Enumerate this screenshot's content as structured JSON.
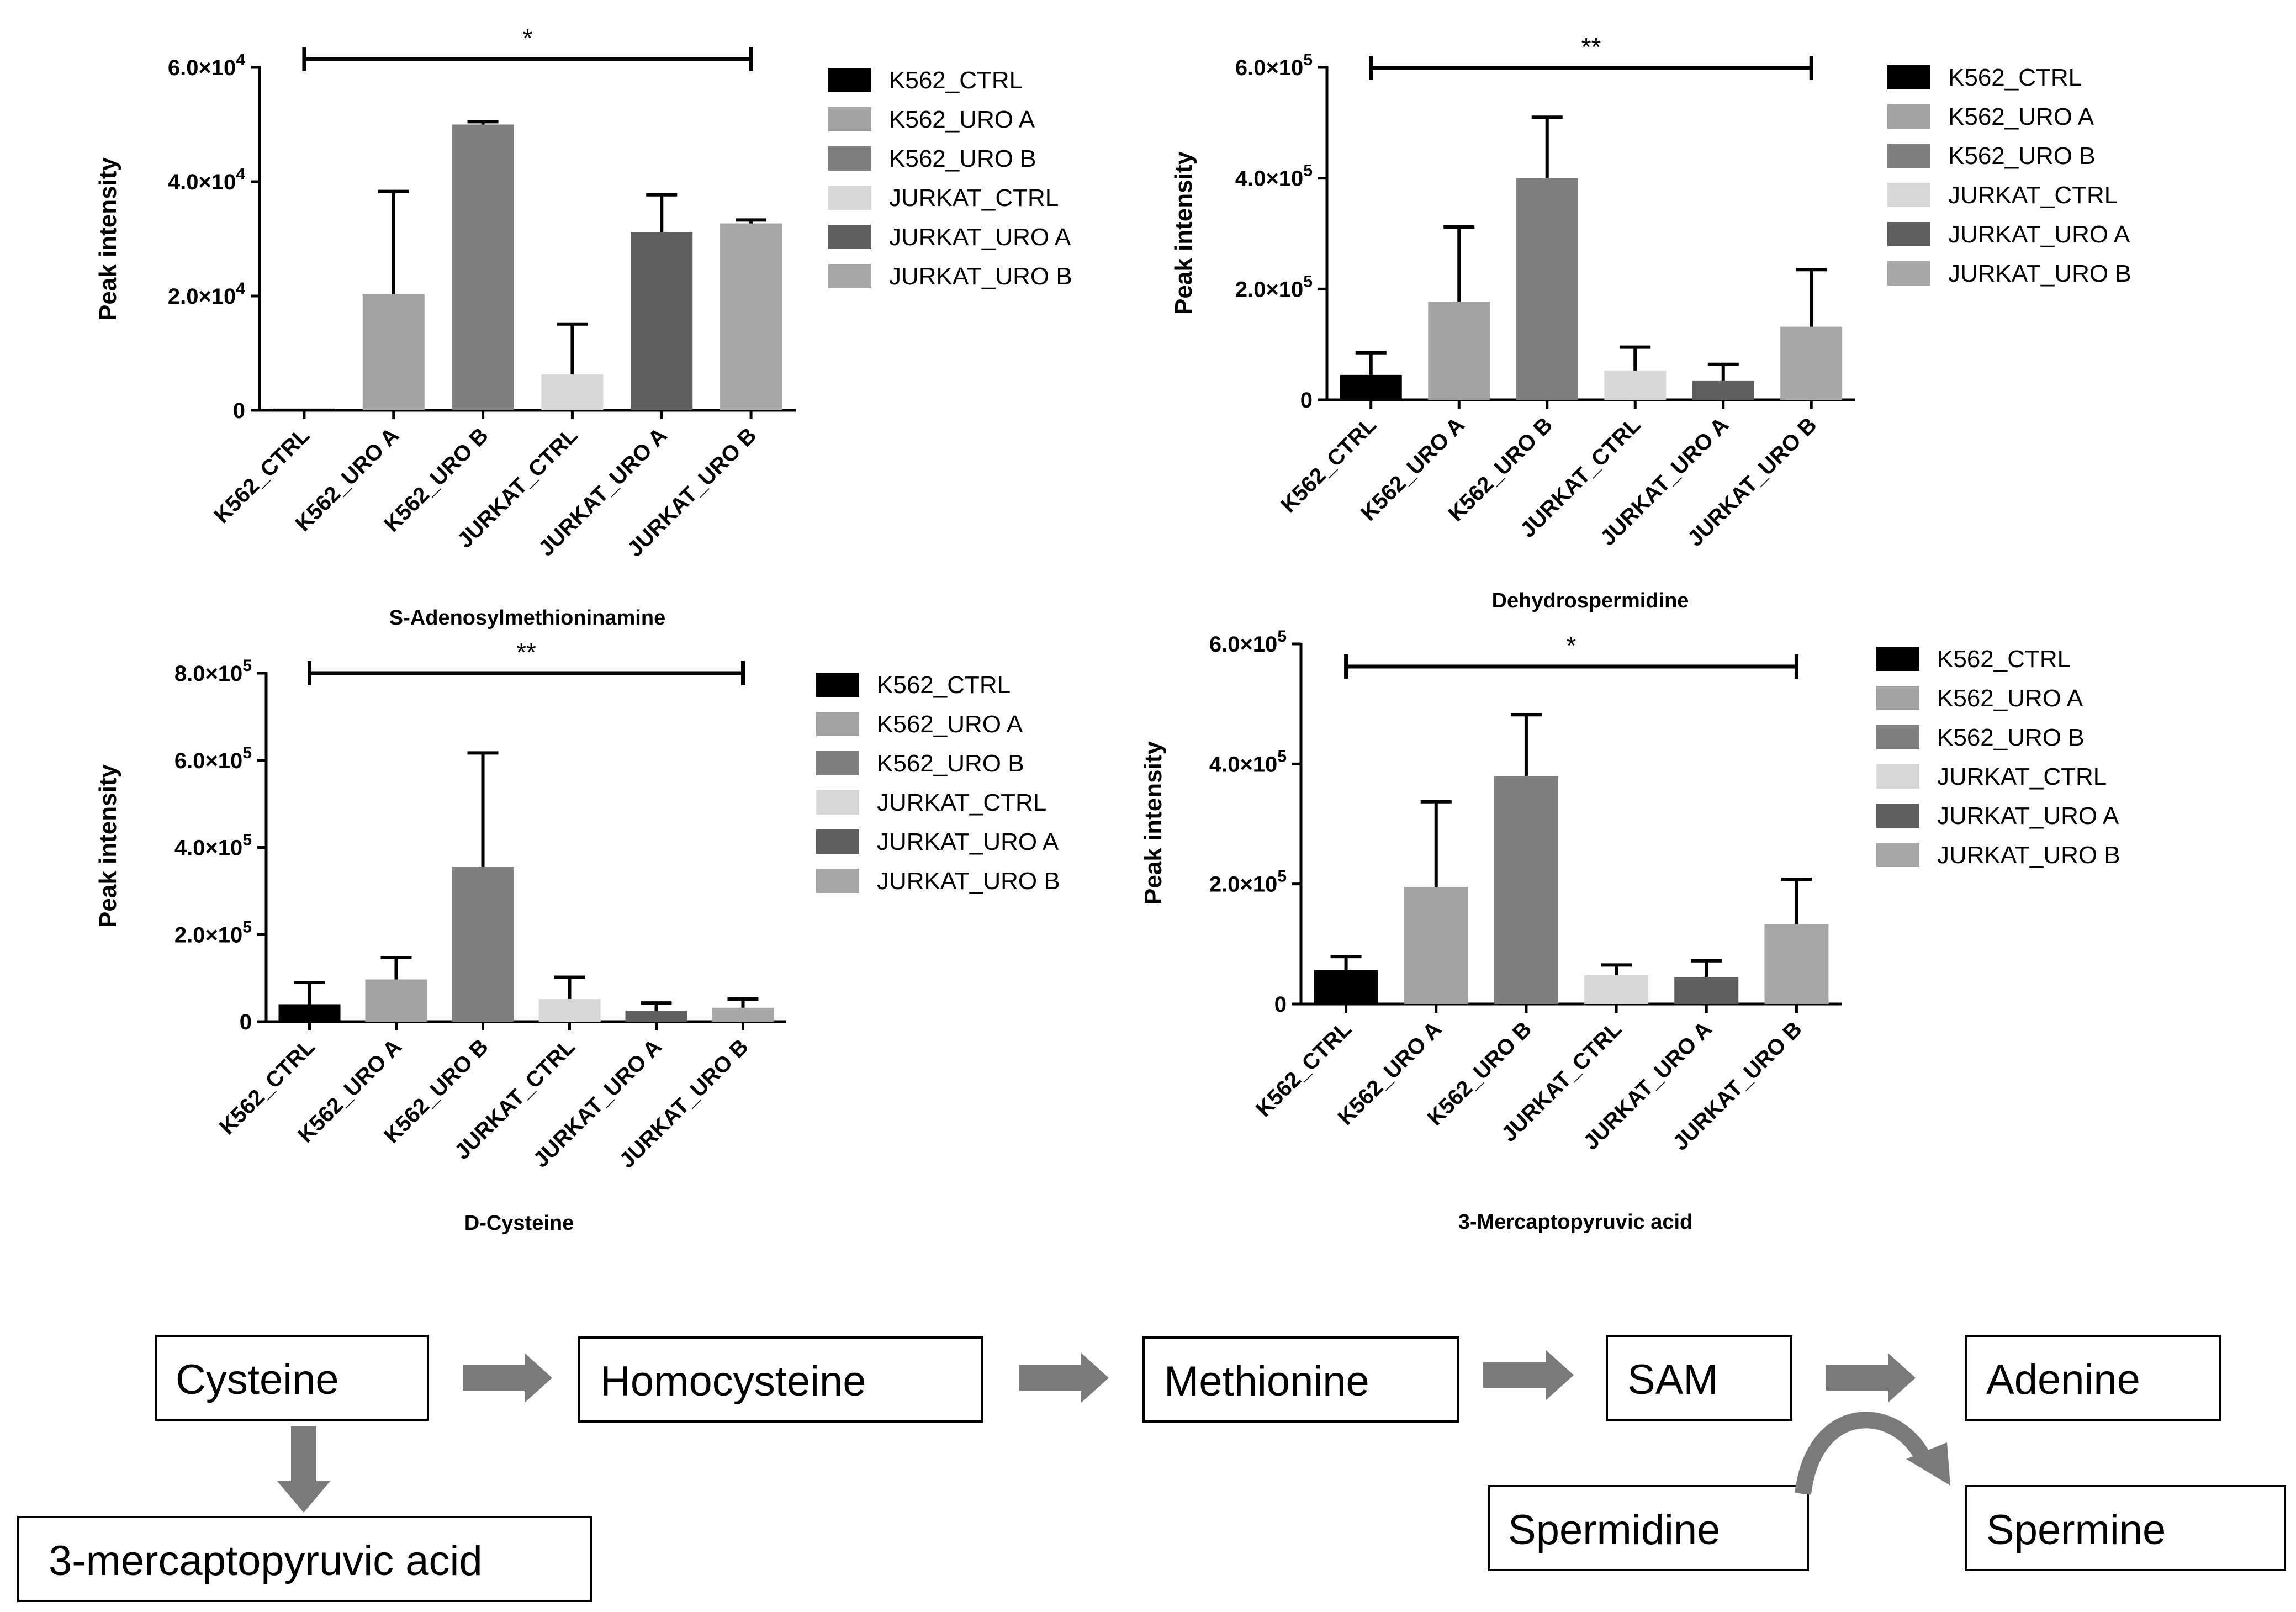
{
  "colors": {
    "K562_CTRL": "#000000",
    "K562_URO A": "#a3a3a3",
    "K562_URO B": "#7f7f7f",
    "JURKAT_CTRL": "#d7d7d7",
    "JURKAT_URO A": "#5f5f5f",
    "JURKAT_URO B": "#a7a7a7",
    "arrow": "#7a7a7a"
  },
  "chart_data": [
    {
      "type": "bar",
      "title": "S-Adenosylmethioninamine",
      "ylabel": "Peak intensity",
      "categories": [
        "K562_CTRL",
        "K562_URO A",
        "K562_URO B",
        "JURKAT_CTRL",
        "JURKAT_URO A",
        "JURKAT_URO B"
      ],
      "values": [
        300,
        20300,
        50000,
        6300,
        31200,
        32700
      ],
      "errors": [
        0,
        18000,
        500,
        8800,
        6500,
        600
      ],
      "ylim": [
        0,
        60000
      ],
      "yticks": [
        {
          "value": 0,
          "mant": "0",
          "exp": ""
        },
        {
          "value": 20000,
          "mant": "2.0×10",
          "exp": "4"
        },
        {
          "value": 40000,
          "mant": "4.0×10",
          "exp": "4"
        },
        {
          "value": 60000,
          "mant": "6.0×10",
          "exp": "4"
        }
      ],
      "significance": {
        "label": "*",
        "from": "K562_CTRL",
        "to": "JURKAT_URO B"
      },
      "legend": [
        "K562_CTRL",
        "K562_URO A",
        "K562_URO B",
        "JURKAT_CTRL",
        "JURKAT_URO A",
        "JURKAT_URO B"
      ]
    },
    {
      "type": "bar",
      "title": "Dehydrospermidine",
      "ylabel": "Peak intensity",
      "categories": [
        "K562_CTRL",
        "K562_URO A",
        "K562_URO B",
        "JURKAT_CTRL",
        "JURKAT_URO A",
        "JURKAT_URO B"
      ],
      "values": [
        45000,
        177000,
        400000,
        53000,
        34000,
        132000
      ],
      "errors": [
        40000,
        135000,
        110000,
        42000,
        30000,
        103000
      ],
      "ylim": [
        0,
        600000
      ],
      "yticks": [
        {
          "value": 0,
          "mant": "0",
          "exp": ""
        },
        {
          "value": 200000,
          "mant": "2.0×10",
          "exp": "5"
        },
        {
          "value": 400000,
          "mant": "4.0×10",
          "exp": "5"
        },
        {
          "value": 600000,
          "mant": "6.0×10",
          "exp": "5"
        }
      ],
      "significance": {
        "label": "**",
        "from": "K562_CTRL",
        "to": "JURKAT_URO B"
      },
      "legend": [
        "K562_CTRL",
        "K562_URO A",
        "K562_URO B",
        "JURKAT_CTRL",
        "JURKAT_URO A",
        "JURKAT_URO B"
      ]
    },
    {
      "type": "bar",
      "title": "D-Cysteine",
      "ylabel": "Peak intensity",
      "categories": [
        "K562_CTRL",
        "K562_URO A",
        "K562_URO B",
        "JURKAT_CTRL",
        "JURKAT_URO A",
        "JURKAT_URO B"
      ],
      "values": [
        40000,
        97000,
        355000,
        52000,
        25000,
        32000
      ],
      "errors": [
        50000,
        50000,
        262000,
        50000,
        18000,
        20000
      ],
      "ylim": [
        0,
        800000
      ],
      "yticks": [
        {
          "value": 0,
          "mant": "0",
          "exp": ""
        },
        {
          "value": 200000,
          "mant": "2.0×10",
          "exp": "5"
        },
        {
          "value": 400000,
          "mant": "4.0×10",
          "exp": "5"
        },
        {
          "value": 600000,
          "mant": "6.0×10",
          "exp": "5"
        },
        {
          "value": 800000,
          "mant": "8.0×10",
          "exp": "5"
        }
      ],
      "significance": {
        "label": "**",
        "from": "K562_CTRL",
        "to": "JURKAT_URO B"
      },
      "legend": [
        "K562_CTRL",
        "K562_URO A",
        "K562_URO B",
        "JURKAT_CTRL",
        "JURKAT_URO A",
        "JURKAT_URO B"
      ]
    },
    {
      "type": "bar",
      "title": "3-Mercaptopyruvic acid",
      "ylabel": "Peak intensity",
      "categories": [
        "K562_CTRL",
        "K562_URO A",
        "K562_URO B",
        "JURKAT_CTRL",
        "JURKAT_URO A",
        "JURKAT_URO B"
      ],
      "values": [
        57000,
        195000,
        380000,
        48000,
        45000,
        133000
      ],
      "errors": [
        22000,
        142000,
        102000,
        17000,
        27000,
        75000
      ],
      "ylim": [
        0,
        600000
      ],
      "yticks": [
        {
          "value": 0,
          "mant": "0",
          "exp": ""
        },
        {
          "value": 200000,
          "mant": "2.0×10",
          "exp": "5"
        },
        {
          "value": 400000,
          "mant": "4.0×10",
          "exp": "5"
        },
        {
          "value": 600000,
          "mant": "6.0×10",
          "exp": "5"
        }
      ],
      "significance": {
        "label": "*",
        "from": "K562_CTRL",
        "to": "JURKAT_URO B"
      },
      "legend": [
        "K562_CTRL",
        "K562_URO A",
        "K562_URO B",
        "JURKAT_CTRL",
        "JURKAT_URO A",
        "JURKAT_URO B"
      ]
    }
  ],
  "pathway": {
    "cysteine": "Cysteine",
    "homocysteine": "Homocysteine",
    "methionine": "Methionine",
    "sam": "SAM",
    "adenine": "Adenine",
    "mercaptopyruvic": "3-mercaptopyruvic acid",
    "spermidine": "Spermidine",
    "spermine": "Spermine"
  }
}
